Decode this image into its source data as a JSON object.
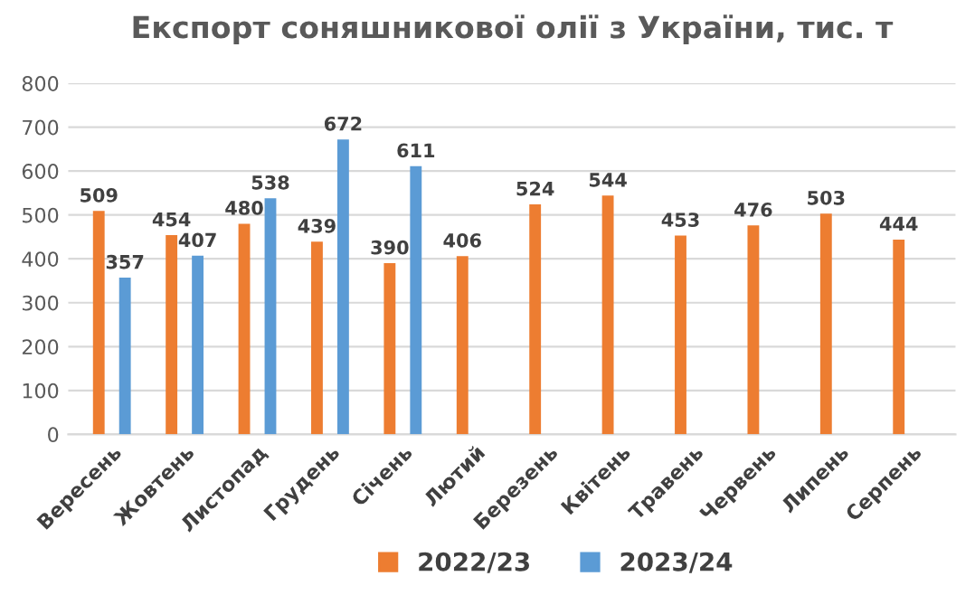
{
  "chart_data": {
    "type": "bar",
    "title": "Експорт соняшникової олії з України, тис. т",
    "categories": [
      "Вересень",
      "Жовтень",
      "Листопад",
      "Грудень",
      "Січень",
      "Лютий",
      "Березень",
      "Квітень",
      "Травень",
      "Червень",
      "Липень",
      "Серпень"
    ],
    "series": [
      {
        "name": "2022/23",
        "color": "#ed7d31",
        "values": [
          509,
          454,
          480,
          439,
          390,
          406,
          524,
          544,
          453,
          476,
          503,
          444
        ]
      },
      {
        "name": "2023/24",
        "color": "#5b9bd5",
        "values": [
          357,
          407,
          538,
          672,
          611,
          null,
          null,
          null,
          null,
          null,
          null,
          null
        ]
      }
    ],
    "ylim": [
      0,
      800
    ],
    "yticks": [
      0,
      100,
      200,
      300,
      400,
      500,
      600,
      700,
      800
    ],
    "grid": "y",
    "legend": "bottom",
    "data_labels": true
  }
}
